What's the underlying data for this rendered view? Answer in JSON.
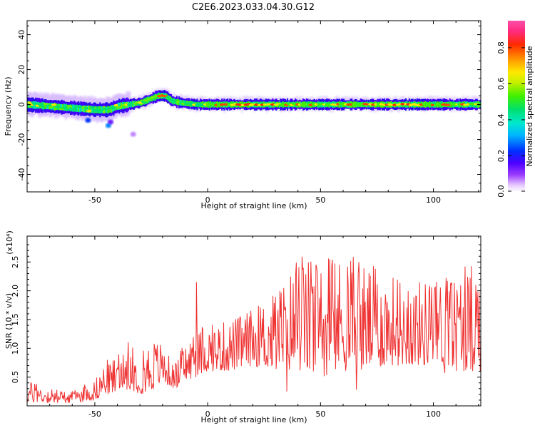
{
  "title": "C2E6.2023.033.04.30.G12",
  "chart_data": [
    {
      "type": "heatmap",
      "xlabel": "Height of straight line (km)",
      "ylabel": "Frequency (Hz)",
      "xlim": [
        -80,
        121
      ],
      "ylim": [
        -50,
        48
      ],
      "xticks": [
        -50,
        0,
        50,
        100
      ],
      "yticks": [
        -40,
        -20,
        0,
        20,
        40
      ],
      "grid": false,
      "colorbar": {
        "label": "Normalized spectral amplitude",
        "range": [
          0.0,
          0.95
        ],
        "ticks": [
          "0.0",
          "0.2",
          "0.4",
          "0.6",
          "0.8"
        ],
        "colormap": "rainbow (magenta-blue-cyan-green-yellow-red-pink)"
      },
      "ridge": {
        "x": [
          -80,
          -70,
          -60,
          -50,
          -44,
          -40,
          -35,
          -30,
          -26,
          -22,
          -19,
          -16,
          -12,
          -5,
          0,
          20,
          50,
          80,
          121
        ],
        "center": [
          0,
          -1,
          -2,
          -3,
          -3,
          -1,
          0,
          1,
          3,
          5,
          5,
          2,
          1,
          0,
          0,
          0,
          0,
          0,
          0
        ]
      },
      "sidelobe_points": [
        {
          "x": -53,
          "y": -9,
          "amplitude": 0.25
        },
        {
          "x": -44,
          "y": -12,
          "amplitude": 0.3
        },
        {
          "x": -43,
          "y": -10,
          "amplitude": 0.15
        },
        {
          "x": -33,
          "y": -17,
          "amplitude": 0.05
        }
      ]
    },
    {
      "type": "line",
      "xlabel": "Height of straight line (km)",
      "ylabel": "SNR (10 * v/v)",
      "y_multiplier": "(x10⁴)",
      "xlim": [
        -80,
        121
      ],
      "ylim": [
        0.0,
        2.95
      ],
      "xticks": [
        -50,
        0,
        50,
        100
      ],
      "yticks": [
        0.5,
        1.0,
        1.5,
        2.0,
        2.5
      ],
      "color": "#ef3333",
      "grid": false,
      "envelope": {
        "x": [
          -80,
          -70,
          -60,
          -50,
          -45,
          -40,
          -35,
          -30,
          -25,
          -20,
          -15,
          -10,
          -5,
          0,
          10,
          20,
          30,
          40,
          50,
          60,
          70,
          80,
          90,
          100,
          110,
          120
        ],
        "low": [
          0.05,
          0.05,
          0.05,
          0.1,
          0.2,
          0.2,
          0.3,
          0.2,
          0.25,
          0.4,
          0.3,
          0.4,
          0.5,
          0.6,
          0.6,
          0.7,
          0.6,
          0.6,
          0.5,
          0.6,
          0.6,
          0.7,
          0.7,
          0.7,
          0.6,
          0.6
        ],
        "high": [
          0.45,
          0.3,
          0.25,
          0.45,
          0.8,
          0.85,
          1.1,
          0.9,
          1.2,
          1.1,
          0.7,
          1.1,
          1.3,
          1.4,
          1.5,
          1.7,
          2.0,
          2.6,
          2.5,
          2.6,
          2.5,
          2.3,
          2.2,
          2.2,
          2.3,
          2.6
        ]
      },
      "annotations": [
        {
          "x": -5,
          "y": 2.15
        },
        {
          "x": 35,
          "y": 2.85
        },
        {
          "x": 66,
          "y": 2.95
        },
        {
          "x": 66,
          "y": 0.28
        },
        {
          "x": 35,
          "y": 0.25
        },
        {
          "x": 105,
          "y": 0.57
        }
      ]
    }
  ]
}
